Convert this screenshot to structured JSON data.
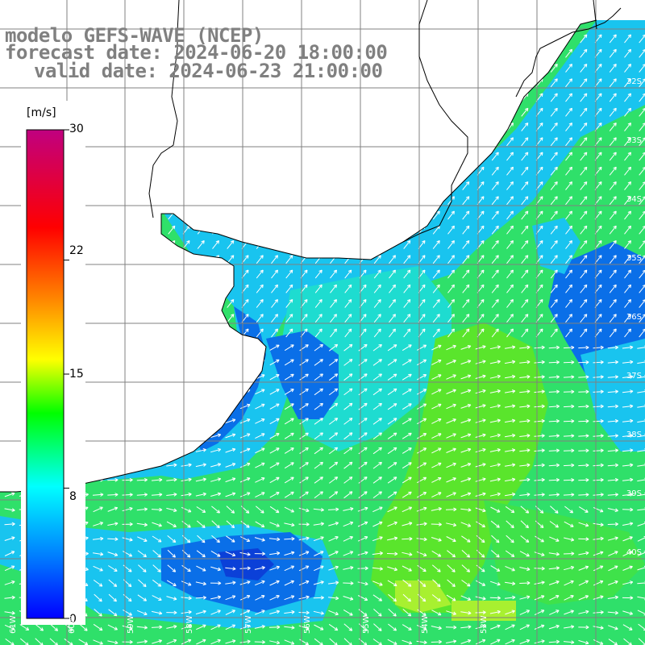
{
  "header": {
    "line1": "modelo GEFS-WAVE (NCEP)",
    "line2": "forecast date: 2024-06-20 18:00:00",
    "line3": "valid date: 2024-06-23 21:00:00"
  },
  "colorbar": {
    "unit": "[m/s]",
    "ticks": [
      {
        "label": "30",
        "value": 30
      },
      {
        "label": "22",
        "value": 22
      },
      {
        "label": "15",
        "value": 15
      },
      {
        "label": "8",
        "value": 8
      },
      {
        "label": "0",
        "value": 0
      }
    ],
    "colors": [
      "#0000ff",
      "#0080ff",
      "#00ffff",
      "#00ff00",
      "#ffff00",
      "#ff8000",
      "#ff0000",
      "#c00080"
    ]
  },
  "map": {
    "lat_labels": [
      "32S",
      "33S",
      "34S",
      "35S",
      "36S",
      "37S",
      "38S",
      "39S",
      "40S"
    ],
    "lon_labels": [
      "61W",
      "60W",
      "59W",
      "58W",
      "57W",
      "56W",
      "55W",
      "54W",
      "53W"
    ],
    "ocean_colors": {
      "weak": "#0a6fe8",
      "medium": "#19c4ef",
      "cyan": "#1edcd0",
      "green": "#2fe06a",
      "bright": "#5ae52c",
      "yellow": "#a8f030",
      "land": "#ffffff",
      "grid": "#808080"
    }
  }
}
